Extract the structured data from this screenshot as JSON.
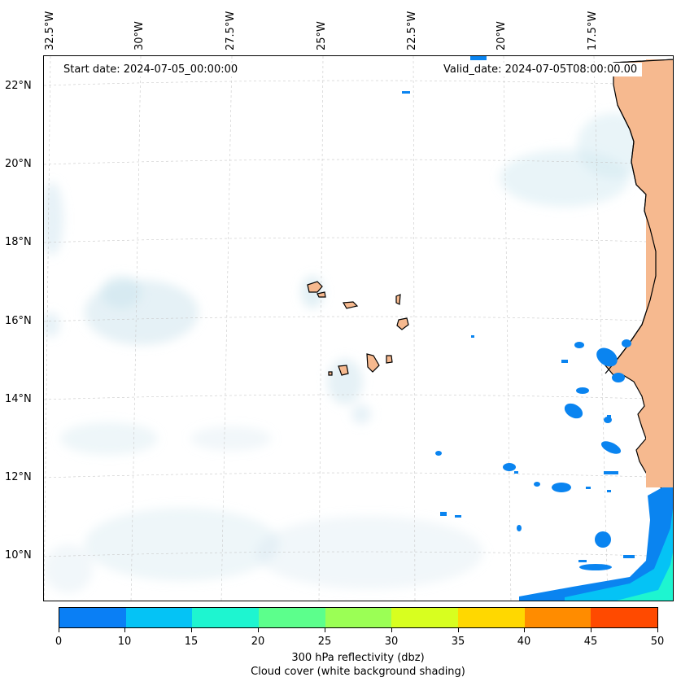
{
  "map": {
    "lat_labels": [
      "22°N",
      "20°N",
      "18°N",
      "16°N",
      "14°N",
      "12°N",
      "10°N"
    ],
    "lon_labels": [
      "32.5°W",
      "30°W",
      "27.5°W",
      "25°W",
      "22.5°W",
      "20°W",
      "17.5°W"
    ],
    "start_date": "Start date: 2024-07-05_00:00:00",
    "valid_date": "Valid_date: 2024-07-05T08:00:00.00",
    "land_color": "#f6b98f",
    "reflectivity_color": "#0a84f0"
  },
  "colorbar": {
    "ticks": [
      "0",
      "10",
      "15",
      "20",
      "25",
      "30",
      "35",
      "40",
      "45",
      "50"
    ],
    "colors": [
      "#0a7ff5",
      "#05c3f5",
      "#1ef5d0",
      "#5cff8c",
      "#9bff55",
      "#d8ff1f",
      "#ffd800",
      "#ff8c00",
      "#ff4a00"
    ],
    "label_line1": "300 hPa reflectivity (dbz)",
    "label_line2": "Cloud cover (white background shading)"
  }
}
